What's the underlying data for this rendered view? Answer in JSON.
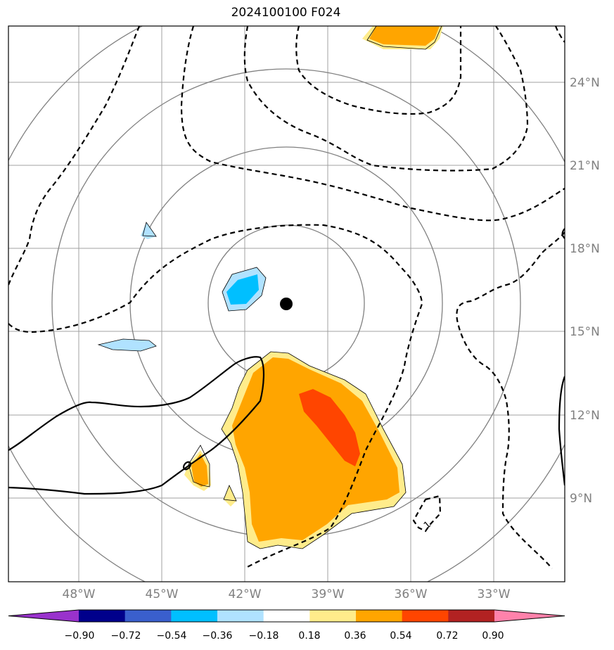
{
  "title": "2024100100 F024",
  "map": {
    "lat_labels": [
      "24°N",
      "21°N",
      "18°N",
      "15°N",
      "12°N",
      "9°N"
    ],
    "lon_labels": [
      "48°W",
      "45°W",
      "42°W",
      "39°W",
      "36°W",
      "33°W"
    ],
    "center_marker": "storm-center",
    "contour_label": "1"
  },
  "colorbar": {
    "ticks": [
      "−0.90",
      "−0.72",
      "−0.54",
      "−0.36",
      "−0.18",
      "0.18",
      "0.36",
      "0.54",
      "0.72",
      "0.90"
    ],
    "colors": [
      "#9932CC",
      "#00008B",
      "#3A5FCD",
      "#00BFFF",
      "#B0E2FF",
      "#FFFFFF",
      "#FFEC8B",
      "#FFA500",
      "#FF4500",
      "#B22222",
      "#FF82AB"
    ]
  }
}
